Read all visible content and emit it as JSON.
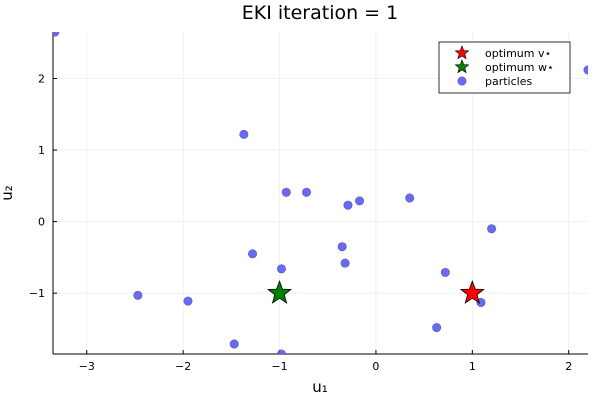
{
  "chart_data": {
    "type": "scatter",
    "title": "EKI iteration = 1",
    "xlabel": "u₁",
    "ylabel": "u₂",
    "xlim": [
      -3.35,
      2.2
    ],
    "ylim": [
      -1.85,
      2.65
    ],
    "xticks": [
      -3,
      -2,
      -1,
      0,
      1,
      2
    ],
    "xtick_labels": [
      "−3",
      "−2",
      "−1",
      "0",
      "1",
      "2"
    ],
    "yticks": [
      -1,
      0,
      1,
      2
    ],
    "ytick_labels": [
      "−1",
      "0",
      "1",
      "2"
    ],
    "grid": true,
    "legend_position": "top-right",
    "series": [
      {
        "name": "optimum v⋆",
        "marker": "star",
        "color": "#ff0000",
        "points": [
          {
            "x": 1.0,
            "y": -1.0
          }
        ]
      },
      {
        "name": "optimum w⋆",
        "marker": "star",
        "color": "#008000",
        "points": [
          {
            "x": -1.0,
            "y": -1.0
          }
        ]
      },
      {
        "name": "particles",
        "marker": "circle",
        "color": "#6161f2",
        "points": [
          {
            "x": -3.33,
            "y": 2.65
          },
          {
            "x": 2.2,
            "y": 2.12
          },
          {
            "x": -1.37,
            "y": 1.22
          },
          {
            "x": -0.93,
            "y": 0.41
          },
          {
            "x": -0.72,
            "y": 0.41
          },
          {
            "x": -0.29,
            "y": 0.23
          },
          {
            "x": -0.17,
            "y": 0.29
          },
          {
            "x": 0.35,
            "y": 0.33
          },
          {
            "x": 1.2,
            "y": -0.1
          },
          {
            "x": -0.35,
            "y": -0.35
          },
          {
            "x": -1.28,
            "y": -0.45
          },
          {
            "x": -0.32,
            "y": -0.58
          },
          {
            "x": -0.98,
            "y": -0.66
          },
          {
            "x": 0.72,
            "y": -0.71
          },
          {
            "x": -2.47,
            "y": -1.03
          },
          {
            "x": -1.95,
            "y": -1.11
          },
          {
            "x": 1.09,
            "y": -1.13
          },
          {
            "x": 0.63,
            "y": -1.48
          },
          {
            "x": -1.47,
            "y": -1.71
          },
          {
            "x": -0.98,
            "y": -1.85
          }
        ]
      }
    ]
  }
}
